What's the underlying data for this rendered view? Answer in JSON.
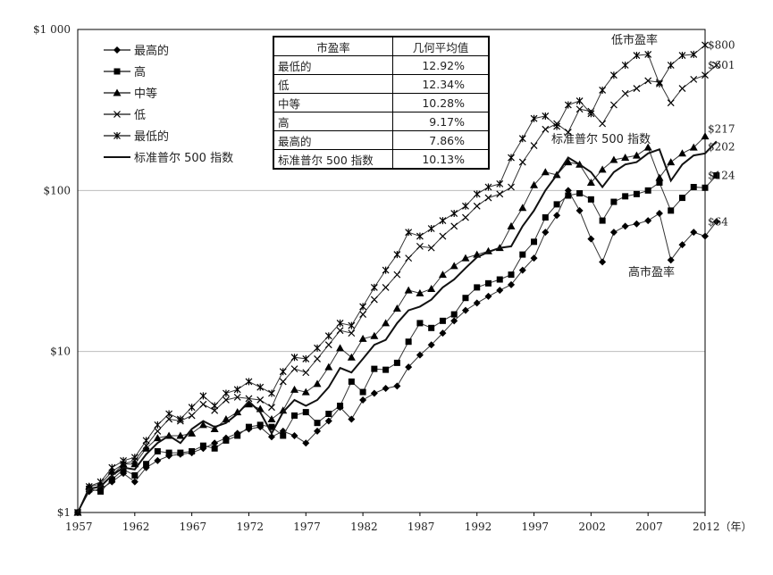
{
  "chart_data": {
    "type": "line",
    "scale": "log",
    "ylim": [
      1,
      1000
    ],
    "y_ticks": [
      {
        "value": 1,
        "label": "$1"
      },
      {
        "value": 10,
        "label": "$10"
      },
      {
        "value": 100,
        "label": "$100"
      },
      {
        "value": 1000,
        "label": "$1 000"
      }
    ],
    "x_ticks": [
      "1957",
      "1962",
      "1967",
      "1972",
      "1977",
      "1982",
      "1987",
      "1992",
      "1997",
      "2002",
      "2007",
      "2012（年）"
    ],
    "x_range": [
      1957,
      2012
    ],
    "series": [
      {
        "name": "最高的",
        "marker": "diamond",
        "end_label": "$64",
        "values": [
          1.0,
          1.35,
          1.4,
          1.55,
          1.75,
          1.55,
          1.9,
          2.1,
          2.25,
          2.3,
          2.35,
          2.5,
          2.7,
          2.9,
          3.1,
          3.3,
          3.4,
          2.95,
          3.2,
          3.0,
          2.7,
          3.2,
          3.7,
          4.5,
          3.8,
          5.0,
          5.5,
          5.9,
          6.1,
          8.0,
          9.5,
          11.0,
          13.0,
          15.5,
          18.0,
          20.0,
          22.0,
          24.0,
          26.0,
          32.0,
          38.0,
          55.0,
          70.0,
          100.0,
          75.0,
          50.0,
          36.0,
          55.0,
          60.0,
          62.0,
          65.0,
          72.0,
          37.0,
          46.0,
          55.0,
          52.0,
          64.0
        ]
      },
      {
        "name": "高",
        "marker": "square",
        "end_label": "$124",
        "values": [
          1.0,
          1.4,
          1.35,
          1.6,
          1.85,
          1.7,
          2.0,
          2.4,
          2.35,
          2.35,
          2.4,
          2.6,
          2.5,
          2.8,
          3.0,
          3.4,
          3.5,
          3.4,
          3.0,
          4.0,
          4.2,
          3.6,
          4.1,
          4.6,
          6.5,
          5.6,
          7.8,
          7.7,
          8.5,
          11.5,
          15.0,
          14.0,
          15.5,
          17.0,
          21.5,
          25.0,
          26.5,
          28.0,
          30.0,
          40.0,
          48.0,
          68.0,
          82.0,
          93.0,
          96.0,
          88.0,
          65.0,
          85.0,
          92.0,
          95.0,
          100.0,
          112.0,
          75.0,
          90.0,
          105.0,
          104.0,
          124.0
        ]
      },
      {
        "name": "中等",
        "marker": "triangle",
        "end_label": "$217",
        "values": [
          1.0,
          1.45,
          1.5,
          1.8,
          2.0,
          2.0,
          2.5,
          2.9,
          3.0,
          3.0,
          3.1,
          3.5,
          3.3,
          3.8,
          4.2,
          4.7,
          4.4,
          3.8,
          4.3,
          5.8,
          5.6,
          6.3,
          8.0,
          10.5,
          9.2,
          12.0,
          12.5,
          15.0,
          18.5,
          24.0,
          23.0,
          24.5,
          30.0,
          34.0,
          38.0,
          40.0,
          42.0,
          44.0,
          60.0,
          78.0,
          108.0,
          130.0,
          125.0,
          150.0,
          145.0,
          112.0,
          135.0,
          155.0,
          160.0,
          165.0,
          185.0,
          120.0,
          150.0,
          170.0,
          185.0,
          217.0
        ]
      },
      {
        "name": "低",
        "marker": "x",
        "end_label": "$601",
        "values": [
          1.0,
          1.4,
          1.45,
          1.7,
          2.0,
          2.1,
          2.6,
          3.2,
          3.8,
          3.7,
          4.0,
          4.7,
          4.3,
          5.0,
          5.2,
          5.1,
          5.0,
          4.5,
          6.5,
          7.8,
          7.4,
          9.0,
          11.0,
          13.5,
          13.0,
          17.0,
          21.0,
          25.0,
          30.0,
          38.0,
          45.0,
          44.0,
          52.0,
          60.0,
          68.0,
          80.0,
          90.0,
          95.0,
          105.0,
          150.0,
          190.0,
          240.0,
          260.0,
          230.0,
          320.0,
          310.0,
          260.0,
          340.0,
          400.0,
          430.0,
          480.0,
          470.0,
          350.0,
          430.0,
          490.0,
          520.0,
          601.0
        ]
      },
      {
        "name": "最低的",
        "marker": "star",
        "end_label": "$800",
        "values": [
          1.0,
          1.45,
          1.55,
          1.9,
          2.1,
          2.2,
          2.8,
          3.5,
          4.1,
          3.8,
          4.5,
          5.3,
          4.6,
          5.5,
          5.8,
          6.5,
          6.0,
          5.5,
          7.5,
          9.2,
          9.0,
          10.5,
          12.5,
          15.0,
          14.5,
          19.0,
          25.0,
          32.0,
          40.0,
          55.0,
          52.0,
          58.0,
          65.0,
          72.0,
          80.0,
          95.0,
          105.0,
          110.0,
          160.0,
          210.0,
          280.0,
          290.0,
          250.0,
          340.0,
          360.0,
          300.0,
          420.0,
          520.0,
          600.0,
          690.0,
          700.0,
          460.0,
          600.0,
          690.0,
          700.0,
          800.0
        ]
      },
      {
        "name": "标准普尔 500 指数",
        "marker": "none",
        "end_label": "$202",
        "values": [
          1.0,
          1.4,
          1.45,
          1.7,
          1.9,
          1.85,
          2.3,
          2.7,
          3.0,
          2.7,
          3.3,
          3.7,
          3.4,
          3.6,
          4.1,
          4.9,
          4.2,
          3.1,
          4.2,
          5.0,
          4.6,
          5.0,
          6.0,
          7.9,
          7.4,
          9.0,
          11.0,
          11.8,
          15.0,
          18.0,
          19.0,
          21.0,
          25.0,
          28.0,
          33.0,
          38.5,
          41.5,
          44.0,
          45.0,
          60.0,
          75.0,
          100.0,
          125.0,
          160.0,
          145.0,
          130.0,
          105.0,
          130.0,
          145.0,
          150.0,
          170.0,
          180.0,
          115.0,
          145.0,
          165.0,
          170.0,
          202.0
        ]
      }
    ],
    "legend": [
      "最高的",
      "高",
      "中等",
      "低",
      "最低的",
      "标准普尔 500 指数"
    ],
    "annotations": [
      "低市盈率",
      "标准普尔 500 指数",
      "高市盈率"
    ]
  },
  "table": {
    "headers": [
      "市盈率",
      "几何平均值"
    ],
    "rows": [
      [
        "最低的",
        "12.92%"
      ],
      [
        "低",
        "12.34%"
      ],
      [
        "中等",
        "10.28%"
      ],
      [
        "高",
        "9.17%"
      ],
      [
        "最高的",
        "7.86%"
      ],
      [
        "标准普尔 500 指数",
        "10.13%"
      ]
    ]
  }
}
